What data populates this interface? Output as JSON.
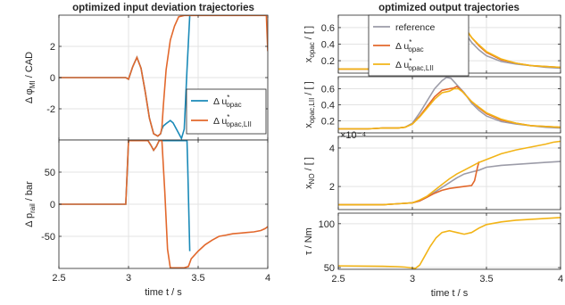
{
  "chart_data": [
    {
      "type": "line",
      "title": "optimized input deviation trajectories",
      "panel": "input-top",
      "ylabel": {
        "pre": "Δ φ",
        "sub": "MI",
        "post": " / CAD"
      },
      "xlim": [
        2.5,
        4
      ],
      "ylim": [
        -4,
        4
      ],
      "xticks": [
        2.5,
        3,
        3.5,
        4
      ],
      "yticks": [
        -2,
        0,
        2
      ],
      "yticklabels": [
        "-2",
        "0",
        "2"
      ],
      "grid": true,
      "legend": "bottom-right",
      "series": [
        {
          "name": "Δ u*opac",
          "legend": {
            "pre": "Δ u",
            "sup": "*",
            "sub": "opac"
          },
          "color": "#1a8ab8",
          "x": [
            2.5,
            2.98,
            3.0,
            3.03,
            3.06,
            3.09,
            3.12,
            3.15,
            3.18,
            3.21,
            3.23,
            3.24,
            3.25,
            3.27,
            3.3,
            3.32,
            3.35,
            3.38,
            3.4,
            3.42,
            3.44
          ],
          "y": [
            0,
            0,
            -0.1,
            0.7,
            1.3,
            0.6,
            -0.9,
            -2.6,
            -3.6,
            -3.75,
            -3.6,
            -3.3,
            -3.1,
            -2.95,
            -2.75,
            -2.9,
            -3.4,
            -3.9,
            -3.3,
            0.5,
            3.98
          ]
        },
        {
          "name": "Δ u*opac,LII",
          "legend": {
            "pre": "Δ u",
            "sup": "*",
            "sub": "opac,LII"
          },
          "color": "#e2682c",
          "x": [
            2.5,
            2.98,
            3.0,
            3.03,
            3.06,
            3.09,
            3.12,
            3.15,
            3.18,
            3.21,
            3.23,
            3.24,
            3.25,
            3.27,
            3.3,
            3.33,
            3.36,
            3.4,
            3.45,
            3.6,
            3.8,
            3.99,
            4.0
          ],
          "y": [
            0,
            0,
            -0.1,
            0.7,
            1.3,
            0.6,
            -0.9,
            -2.6,
            -3.6,
            -3.75,
            -3.6,
            -3.2,
            -1.8,
            0.5,
            2.4,
            3.3,
            3.9,
            3.98,
            3.98,
            3.98,
            3.98,
            3.98,
            1.7
          ]
        }
      ]
    },
    {
      "type": "line",
      "panel": "input-bottom",
      "ylabel": {
        "pre": "Δ p",
        "sub": "rail",
        "post": " / bar"
      },
      "xlim": [
        2.5,
        4
      ],
      "ylim": [
        -100,
        100
      ],
      "xticks": [
        2.5,
        3,
        3.5,
        4
      ],
      "xticklabels": [
        "2.5",
        "3",
        "3.5",
        "4"
      ],
      "yticks": [
        -50,
        0,
        50
      ],
      "yticklabels": [
        "-50",
        "0",
        "50"
      ],
      "xlabel": "time t / s",
      "grid": true,
      "series": [
        {
          "name": "Δ u*opac",
          "color": "#1a8ab8",
          "x": [
            2.5,
            2.98,
            3.0,
            3.1,
            3.14,
            3.16,
            3.18,
            3.2,
            3.22,
            3.24,
            3.28,
            3.42,
            3.425,
            3.44
          ],
          "y": [
            0,
            0,
            99,
            99,
            99,
            92,
            84,
            90,
            99,
            99,
            99,
            99,
            60,
            -73
          ]
        },
        {
          "name": "Δ u*opac,LII",
          "color": "#e2682c",
          "x": [
            2.5,
            2.98,
            3.0,
            3.1,
            3.14,
            3.16,
            3.18,
            3.2,
            3.22,
            3.24,
            3.26,
            3.28,
            3.3,
            3.4,
            3.43,
            3.45,
            3.5,
            3.55,
            3.6,
            3.65,
            3.7,
            3.75,
            3.8,
            3.85,
            3.9,
            3.95,
            3.98,
            4.0
          ],
          "y": [
            0,
            0,
            99,
            99,
            99,
            92,
            84,
            90,
            99,
            99,
            20,
            -70,
            -99,
            -99,
            -97,
            -85,
            -73,
            -63,
            -56,
            -50,
            -48,
            -46,
            -45,
            -44,
            -43,
            -41,
            -38,
            -35
          ]
        }
      ]
    },
    {
      "type": "line",
      "title": "optimized output trajectories",
      "panel": "out-1",
      "ylabel": {
        "pre": "x",
        "sub": "opac",
        "post": " / [ ]"
      },
      "xlim": [
        2.5,
        4
      ],
      "ylim": [
        0.05,
        0.75
      ],
      "xticks": [
        2.5,
        3,
        3.5,
        4
      ],
      "yticks": [
        0.2,
        0.4,
        0.6
      ],
      "yticklabels": [
        "0.2",
        "0.4",
        "0.6"
      ],
      "grid": true,
      "legend": "top-right",
      "series": [
        {
          "name": "reference",
          "legend": {
            "pre": "reference"
          },
          "color": "#9c9ca8",
          "x": [
            2.5,
            2.7,
            2.8,
            2.9,
            2.95,
            3.0,
            3.05,
            3.1,
            3.15,
            3.2,
            3.23,
            3.26,
            3.3,
            3.35,
            3.4,
            3.45,
            3.5,
            3.6,
            3.7,
            3.8,
            3.9,
            4.0
          ],
          "y": [
            0.1,
            0.1,
            0.11,
            0.11,
            0.12,
            0.17,
            0.3,
            0.45,
            0.6,
            0.7,
            0.74,
            0.73,
            0.65,
            0.55,
            0.42,
            0.33,
            0.26,
            0.19,
            0.16,
            0.14,
            0.12,
            0.11
          ]
        },
        {
          "name": "Δ u*opac",
          "legend": {
            "pre": "Δ u",
            "sup": "*",
            "sub": "opac"
          },
          "color": "#e2682c",
          "x": [
            2.5,
            2.7,
            2.8,
            2.9,
            2.95,
            3.0,
            3.05,
            3.1,
            3.15,
            3.2,
            3.25,
            3.28,
            3.3,
            3.33,
            3.36,
            3.4,
            3.45,
            3.5,
            3.6,
            3.7,
            3.8,
            3.9,
            4.0
          ],
          "y": [
            0.1,
            0.1,
            0.11,
            0.11,
            0.12,
            0.16,
            0.26,
            0.38,
            0.5,
            0.58,
            0.64,
            0.67,
            0.68,
            0.64,
            0.58,
            0.48,
            0.38,
            0.3,
            0.21,
            0.17,
            0.14,
            0.13,
            0.12
          ]
        },
        {
          "name": "Δ u*opac,LII",
          "legend": {
            "pre": "Δ u",
            "sup": "*",
            "sub": "opac,LII"
          },
          "color": "#f2b417",
          "x": [
            2.5,
            2.7,
            2.8,
            2.9,
            2.95,
            3.0,
            3.05,
            3.1,
            3.15,
            3.2,
            3.25,
            3.28,
            3.31,
            3.34,
            3.37,
            3.4,
            3.45,
            3.5,
            3.6,
            3.7,
            3.8,
            3.9,
            4.0
          ],
          "y": [
            0.1,
            0.1,
            0.11,
            0.11,
            0.12,
            0.16,
            0.25,
            0.36,
            0.47,
            0.56,
            0.62,
            0.65,
            0.66,
            0.62,
            0.56,
            0.48,
            0.39,
            0.31,
            0.22,
            0.17,
            0.14,
            0.13,
            0.12
          ]
        }
      ]
    },
    {
      "type": "line",
      "panel": "out-2",
      "ylabel": {
        "pre": "x",
        "sub": "opac,LII",
        "post": " / [ ]"
      },
      "xlim": [
        2.5,
        4
      ],
      "ylim": [
        0.05,
        0.75
      ],
      "xticks": [
        2.5,
        3,
        3.5,
        4
      ],
      "yticks": [
        0.2,
        0.4,
        0.6
      ],
      "yticklabels": [
        "0.2",
        "0.4",
        "0.6"
      ],
      "grid": true,
      "series": [
        {
          "name": "reference",
          "color": "#9c9ca8",
          "x": [
            2.5,
            2.7,
            2.8,
            2.9,
            2.95,
            3.0,
            3.05,
            3.1,
            3.15,
            3.2,
            3.23,
            3.26,
            3.3,
            3.35,
            3.4,
            3.45,
            3.5,
            3.6,
            3.7,
            3.8,
            3.9,
            4.0
          ],
          "y": [
            0.1,
            0.1,
            0.11,
            0.11,
            0.12,
            0.17,
            0.3,
            0.45,
            0.6,
            0.7,
            0.74,
            0.73,
            0.65,
            0.55,
            0.42,
            0.33,
            0.26,
            0.19,
            0.16,
            0.14,
            0.12,
            0.11
          ]
        },
        {
          "name": "Δ u*opac",
          "color": "#e2682c",
          "x": [
            2.5,
            2.7,
            2.8,
            2.9,
            2.95,
            3.0,
            3.05,
            3.1,
            3.15,
            3.2,
            3.25,
            3.28,
            3.3,
            3.33,
            3.36,
            3.4,
            3.45,
            3.5,
            3.6,
            3.7,
            3.8,
            3.9,
            4.0
          ],
          "y": [
            0.1,
            0.1,
            0.11,
            0.11,
            0.12,
            0.16,
            0.26,
            0.38,
            0.5,
            0.58,
            0.6,
            0.61,
            0.63,
            0.58,
            0.52,
            0.44,
            0.36,
            0.29,
            0.21,
            0.17,
            0.14,
            0.13,
            0.12
          ]
        },
        {
          "name": "Δ u*opac,LII",
          "color": "#f2b417",
          "x": [
            2.5,
            2.7,
            2.8,
            2.9,
            2.95,
            3.0,
            3.05,
            3.1,
            3.15,
            3.2,
            3.25,
            3.28,
            3.31,
            3.34,
            3.37,
            3.4,
            3.45,
            3.5,
            3.6,
            3.7,
            3.8,
            3.9,
            4.0
          ],
          "y": [
            0.1,
            0.1,
            0.11,
            0.11,
            0.12,
            0.16,
            0.25,
            0.36,
            0.47,
            0.55,
            0.57,
            0.6,
            0.6,
            0.56,
            0.5,
            0.44,
            0.37,
            0.3,
            0.22,
            0.17,
            0.14,
            0.13,
            0.12
          ]
        }
      ]
    },
    {
      "type": "line",
      "panel": "out-3",
      "ylabel": {
        "pre": "x",
        "sub": "NO",
        "post": " / [ ]"
      },
      "exponent_label": "×10⁻⁴",
      "xlim": [
        2.5,
        4
      ],
      "ylim": [
        0.8,
        4.6
      ],
      "xticks": [
        2.5,
        3,
        3.5,
        4
      ],
      "yticks": [
        2,
        4
      ],
      "yticklabels": [
        "2",
        "4"
      ],
      "grid": true,
      "series": [
        {
          "name": "reference",
          "color": "#9c9ca8",
          "x": [
            2.5,
            2.8,
            2.9,
            3.0,
            3.05,
            3.1,
            3.15,
            3.2,
            3.25,
            3.3,
            3.35,
            3.4,
            3.45,
            3.5,
            3.6,
            3.7,
            3.8,
            3.9,
            4.0
          ],
          "y": [
            1.05,
            1.05,
            1.1,
            1.15,
            1.25,
            1.45,
            1.7,
            1.95,
            2.2,
            2.45,
            2.65,
            2.75,
            2.85,
            3.0,
            3.1,
            3.15,
            3.2,
            3.25,
            3.3
          ]
        },
        {
          "name": "Δ u*opac",
          "color": "#e2682c",
          "x": [
            2.5,
            2.8,
            2.9,
            3.0,
            3.05,
            3.1,
            3.15,
            3.2,
            3.25,
            3.3,
            3.35,
            3.4,
            3.42,
            3.44,
            3.45
          ],
          "y": [
            1.05,
            1.05,
            1.1,
            1.15,
            1.25,
            1.45,
            1.65,
            1.8,
            1.9,
            1.95,
            2.0,
            2.05,
            2.3,
            3.0,
            3.3
          ]
        },
        {
          "name": "Δ u*opac,LII",
          "color": "#f2b417",
          "x": [
            2.5,
            2.8,
            2.9,
            3.0,
            3.05,
            3.1,
            3.15,
            3.2,
            3.25,
            3.3,
            3.35,
            3.4,
            3.45,
            3.5,
            3.6,
            3.7,
            3.8,
            3.9,
            3.95,
            4.0
          ],
          "y": [
            1.05,
            1.05,
            1.1,
            1.15,
            1.3,
            1.5,
            1.8,
            2.1,
            2.4,
            2.65,
            2.85,
            3.05,
            3.25,
            3.4,
            3.7,
            3.9,
            4.05,
            4.2,
            4.3,
            4.35
          ]
        }
      ]
    },
    {
      "type": "line",
      "panel": "out-4",
      "ylabel": {
        "pre": "τ / Nm"
      },
      "xlim": [
        2.5,
        4
      ],
      "ylim": [
        48,
        112
      ],
      "xticks": [
        2.5,
        3,
        3.5,
        4
      ],
      "xticklabels": [
        "2.5",
        "3",
        "3.5",
        "4"
      ],
      "yticks": [
        50,
        100
      ],
      "yticklabels": [
        "50",
        "100"
      ],
      "xlabel": "time t / s",
      "grid": true,
      "series": [
        {
          "name": "Δ u*opac,LII",
          "color": "#f2b417",
          "x": [
            2.5,
            2.8,
            2.9,
            2.95,
            3.0,
            3.02,
            3.05,
            3.08,
            3.12,
            3.16,
            3.2,
            3.25,
            3.3,
            3.35,
            3.4,
            3.45,
            3.5,
            3.6,
            3.7,
            3.8,
            3.9,
            4.0
          ],
          "y": [
            52,
            51.5,
            51,
            50.5,
            49.5,
            49,
            53,
            62,
            74,
            84,
            90,
            92,
            90,
            88,
            90,
            95,
            99,
            102,
            104,
            105,
            106,
            107
          ]
        }
      ]
    }
  ]
}
